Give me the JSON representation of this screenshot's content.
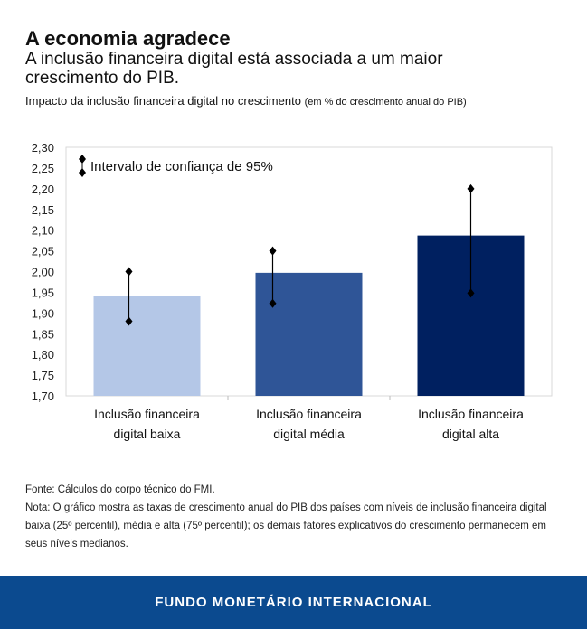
{
  "header": {
    "title": "A economia agradece",
    "subtitle": "A inclusão financeira digital está associada a um maior crescimento do PIB.",
    "caption": "Impacto da inclusão financeira digital no crescimento",
    "caption_unit": "(em % do crescimento anual do PIB)"
  },
  "chart_data": {
    "type": "bar",
    "categories": [
      [
        "Inclusão financeira",
        "digital baixa"
      ],
      [
        "Inclusão financeira",
        "digital média"
      ],
      [
        "Inclusão financeira",
        "digital alta"
      ]
    ],
    "values": [
      1.942,
      1.997,
      2.087
    ],
    "error_low": [
      1.88,
      1.923,
      1.948
    ],
    "error_high": [
      2.0,
      2.05,
      2.2
    ],
    "colors": [
      "#b4c7e7",
      "#2f5597",
      "#002060"
    ],
    "ylim": [
      1.7,
      2.3
    ],
    "yticks": [
      "1,70",
      "1,75",
      "1,80",
      "1,85",
      "1,90",
      "1,95",
      "2,00",
      "2,05",
      "2,10",
      "2,15",
      "2,20",
      "2,25",
      "2,30"
    ],
    "legend": "Intervalo de confiança de 95%",
    "legend_position": "top-left",
    "grid": false
  },
  "notes": {
    "source": "Fonte: Cálculos do corpo técnico do FMI.",
    "note": "Nota: O gráfico mostra as taxas de crescimento anual do PIB  dos países com níveis de inclusão financeira digital baixa (25º percentil), média e alta (75º percentil); os demais fatores explicativos do crescimento permanecem em seus níveis medianos."
  },
  "footer": {
    "label": "FUNDO MONETÁRIO INTERNACIONAL"
  }
}
